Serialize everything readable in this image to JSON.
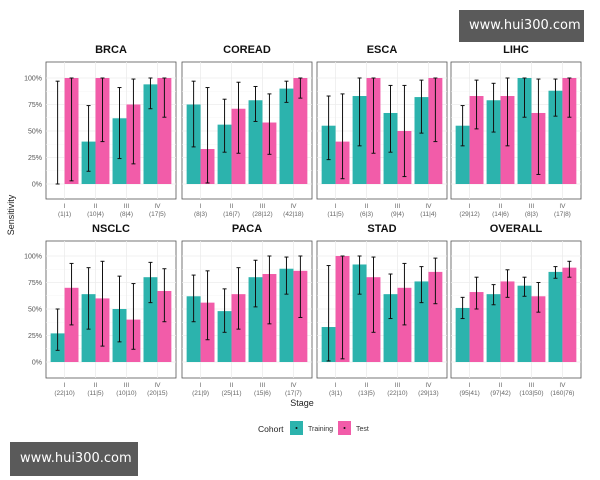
{
  "watermarks": {
    "top": "www.hui300.com",
    "bottom": "www.hui300.com"
  },
  "chart_data": {
    "type": "bar",
    "xlabel": "Stage",
    "ylabel": "Sensitivity",
    "ylim": [
      0,
      1
    ],
    "yticks": [
      "0%",
      "25%",
      "50%",
      "75%",
      "100%"
    ],
    "grid": true,
    "legend": {
      "title": "Cohort",
      "position": "bottom",
      "entries": [
        "Training",
        "Test"
      ]
    },
    "colors": {
      "Training": "#2cb3ad",
      "Test": "#f25ca9"
    },
    "stages": [
      "I",
      "II",
      "III",
      "IV"
    ],
    "facets": [
      {
        "title": "BRCA",
        "counts": [
          "(1|1)",
          "(10|4)",
          "(8|4)",
          "(17|5)"
        ],
        "series": [
          {
            "name": "Training",
            "values": [
              0,
              40,
              62,
              94
            ],
            "ci": [
              [
                0,
                97
              ],
              [
                12,
                74
              ],
              [
                24,
                91
              ],
              [
                71,
                100
              ]
            ]
          },
          {
            "name": "Test",
            "values": [
              100,
              100,
              75,
              100
            ],
            "ci": [
              [
                3,
                100
              ],
              [
                40,
                100
              ],
              [
                19,
                99
              ],
              [
                63,
                100
              ]
            ]
          }
        ]
      },
      {
        "title": "COREAD",
        "counts": [
          "(8|3)",
          "(16|7)",
          "(28|12)",
          "(42|18)"
        ],
        "series": [
          {
            "name": "Training",
            "values": [
              75,
              56,
              79,
              90
            ],
            "ci": [
              [
                35,
                97
              ],
              [
                30,
                80
              ],
              [
                59,
                92
              ],
              [
                77,
                97
              ]
            ]
          },
          {
            "name": "Test",
            "values": [
              33,
              71,
              58,
              100
            ],
            "ci": [
              [
                1,
                91
              ],
              [
                29,
                96
              ],
              [
                28,
                85
              ],
              [
                81,
                100
              ]
            ]
          }
        ]
      },
      {
        "title": "ESCA",
        "counts": [
          "(11|5)",
          "(6|3)",
          "(9|4)",
          "(11|4)"
        ],
        "series": [
          {
            "name": "Training",
            "values": [
              55,
              83,
              67,
              82
            ],
            "ci": [
              [
                23,
                83
              ],
              [
                36,
                100
              ],
              [
                30,
                93
              ],
              [
                48,
                98
              ]
            ]
          },
          {
            "name": "Test",
            "values": [
              40,
              100,
              50,
              100
            ],
            "ci": [
              [
                5,
                85
              ],
              [
                29,
                100
              ],
              [
                7,
                93
              ],
              [
                40,
                100
              ]
            ]
          }
        ]
      },
      {
        "title": "LIHC",
        "counts": [
          "(29|12)",
          "(14|6)",
          "(8|3)",
          "(17|8)"
        ],
        "series": [
          {
            "name": "Training",
            "values": [
              55,
              79,
              100,
              88
            ],
            "ci": [
              [
                36,
                74
              ],
              [
                49,
                95
              ],
              [
                63,
                100
              ],
              [
                64,
                99
              ]
            ]
          },
          {
            "name": "Test",
            "values": [
              83,
              83,
              67,
              100
            ],
            "ci": [
              [
                52,
                98
              ],
              [
                36,
                100
              ],
              [
                9,
                99
              ],
              [
                63,
                100
              ]
            ]
          }
        ]
      },
      {
        "title": "NSCLC",
        "counts": [
          "(22|10)",
          "(11|5)",
          "(10|10)",
          "(20|15)"
        ],
        "series": [
          {
            "name": "Training",
            "values": [
              27,
              64,
              50,
              80
            ],
            "ci": [
              [
                11,
                50
              ],
              [
                31,
                89
              ],
              [
                19,
                81
              ],
              [
                56,
                94
              ]
            ]
          },
          {
            "name": "Test",
            "values": [
              70,
              60,
              40,
              67
            ],
            "ci": [
              [
                35,
                93
              ],
              [
                15,
                95
              ],
              [
                12,
                74
              ],
              [
                38,
                88
              ]
            ]
          }
        ]
      },
      {
        "title": "PACA",
        "counts": [
          "(21|9)",
          "(25|11)",
          "(15|6)",
          "(17|7)"
        ],
        "series": [
          {
            "name": "Training",
            "values": [
              62,
              48,
              80,
              88
            ],
            "ci": [
              [
                38,
                82
              ],
              [
                28,
                69
              ],
              [
                52,
                96
              ],
              [
                64,
                99
              ]
            ]
          },
          {
            "name": "Test",
            "values": [
              56,
              64,
              83,
              86
            ],
            "ci": [
              [
                21,
                86
              ],
              [
                31,
                89
              ],
              [
                36,
                100
              ],
              [
                42,
                100
              ]
            ]
          }
        ]
      },
      {
        "title": "STAD",
        "counts": [
          "(3|1)",
          "(13|5)",
          "(22|10)",
          "(29|13)"
        ],
        "series": [
          {
            "name": "Training",
            "values": [
              33,
              92,
              64,
              76
            ],
            "ci": [
              [
                1,
                91
              ],
              [
                64,
                100
              ],
              [
                41,
                83
              ],
              [
                56,
                90
              ]
            ]
          },
          {
            "name": "Test",
            "values": [
              100,
              80,
              70,
              85
            ],
            "ci": [
              [
                3,
                100
              ],
              [
                28,
                99
              ],
              [
                35,
                93
              ],
              [
                55,
                98
              ]
            ]
          }
        ]
      },
      {
        "title": "OVERALL",
        "counts": [
          "(95|41)",
          "(97|42)",
          "(103|50)",
          "(160|76)"
        ],
        "series": [
          {
            "name": "Training",
            "values": [
              51,
              64,
              72,
              85
            ],
            "ci": [
              [
                41,
                61
              ],
              [
                54,
                73
              ],
              [
                62,
                80
              ],
              [
                79,
                90
              ]
            ]
          },
          {
            "name": "Test",
            "values": [
              66,
              76,
              62,
              89
            ],
            "ci": [
              [
                50,
                80
              ],
              [
                61,
                87
              ],
              [
                47,
                75
              ],
              [
                80,
                95
              ]
            ]
          }
        ]
      }
    ]
  }
}
